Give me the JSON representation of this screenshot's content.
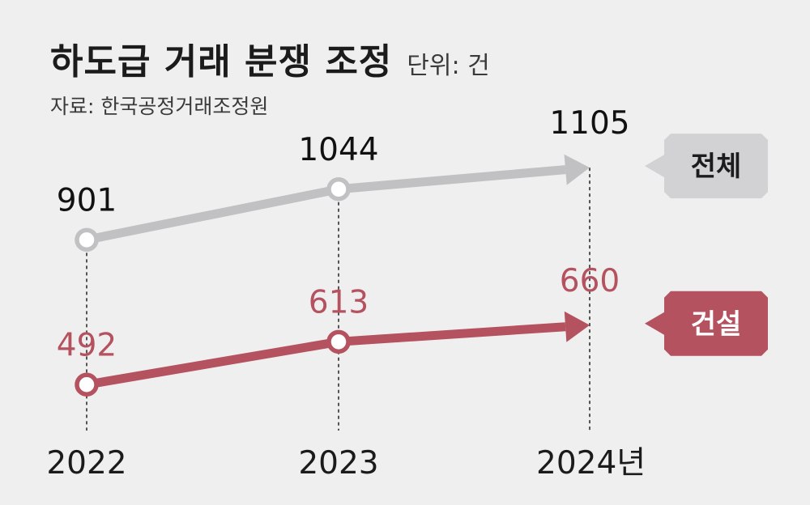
{
  "header": {
    "title": "하도급 거래 분쟁 조정",
    "unit": "단위: 건",
    "source": "자료: 한국공정거래조정원"
  },
  "chart_data": {
    "type": "line",
    "title": "하도급 거래 분쟁 조정",
    "x": [
      "2022",
      "2023",
      "2024년"
    ],
    "series": [
      {
        "name": "전체",
        "values": [
          901,
          1044,
          1105
        ],
        "color": "#c1c1c3",
        "label_color": "#111111",
        "tag_bg": "#d2d2d4",
        "tag_text": "#1c1c1c"
      },
      {
        "name": "건설",
        "values": [
          492,
          613,
          660
        ],
        "color": "#b5525f",
        "label_color": "#b5525f",
        "tag_bg": "#b5525f",
        "tag_text": "#ffffff"
      }
    ],
    "colors": {
      "background": "#f0efef",
      "guide": "#222222",
      "marker_fill": "#ffffff"
    }
  }
}
